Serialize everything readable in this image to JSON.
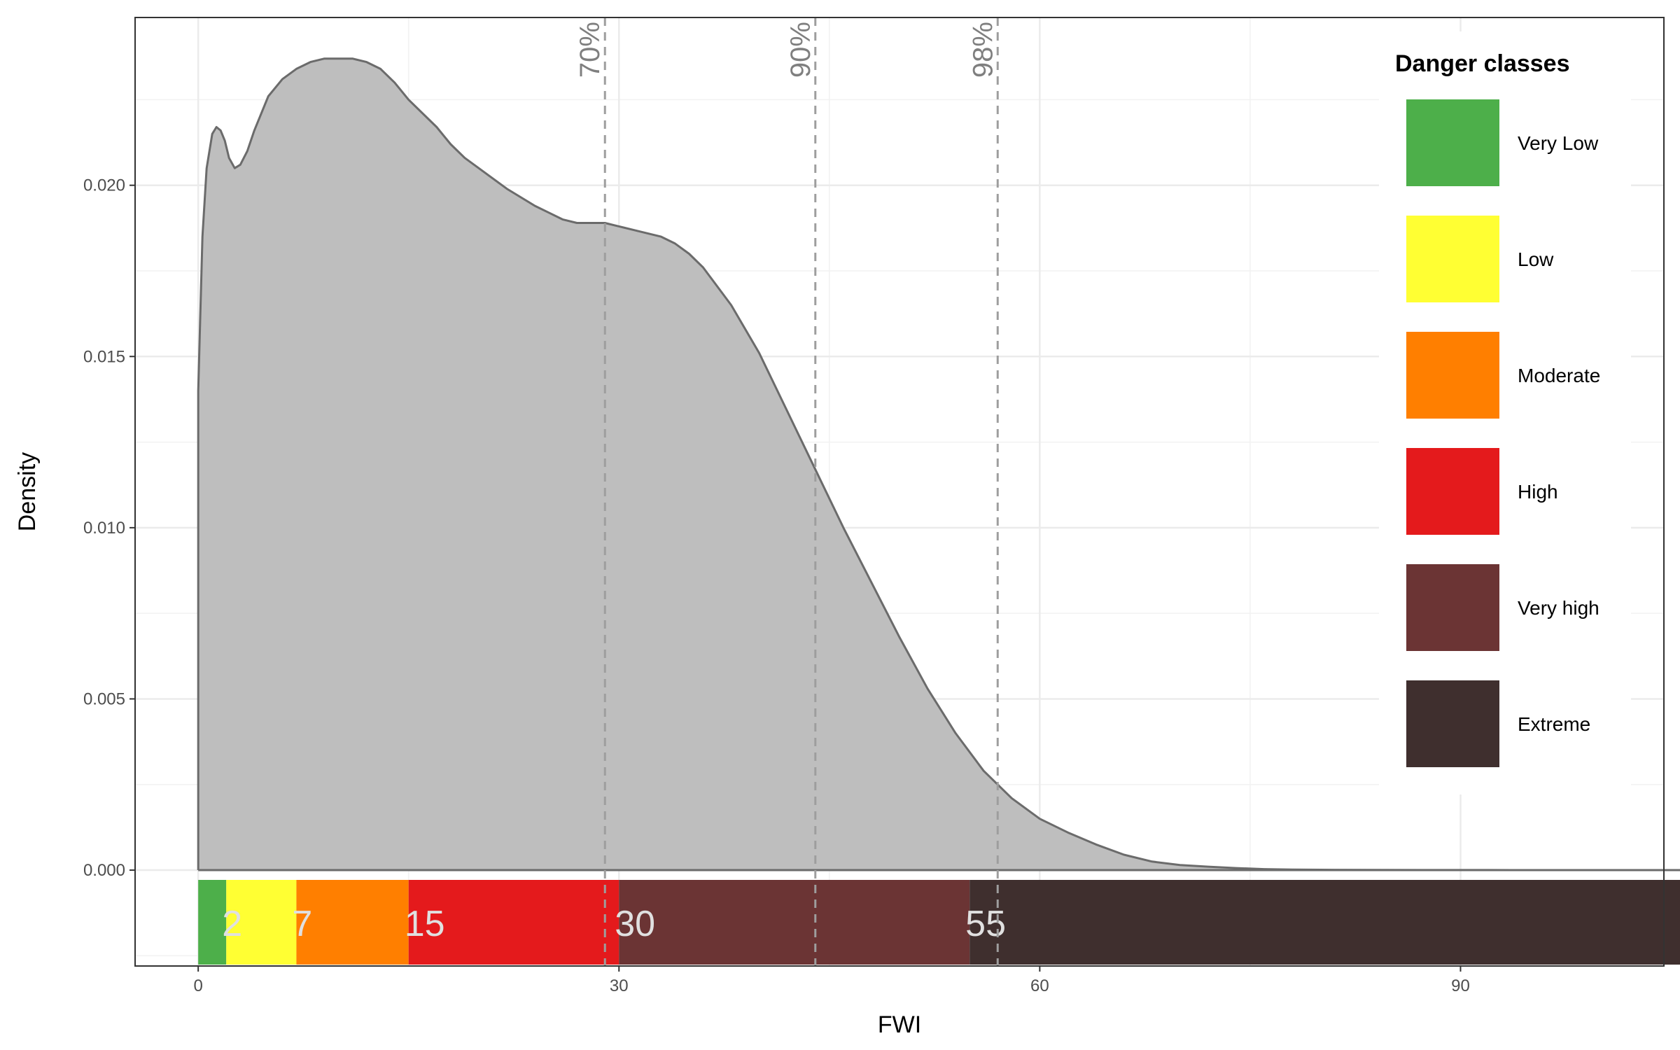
{
  "chart_data": {
    "type": "area",
    "xlabel": "FWI",
    "ylabel": "Density",
    "xlim": [
      -4.5,
      104.5
    ],
    "ylim": [
      -0.0028,
      0.0249
    ],
    "x_ticks": [
      0,
      30,
      60,
      90
    ],
    "y_ticks": [
      0.0,
      0.005,
      0.01,
      0.015,
      0.02
    ],
    "y_tick_labels": [
      "0.000",
      "0.005",
      "0.010",
      "0.015",
      "0.020"
    ],
    "grid": true,
    "colors": {
      "density_fill": "#bebebe",
      "density_line": "#6b6b6b",
      "percentile_line": "#9e9e9e"
    },
    "density": {
      "x": [
        0,
        0.3,
        0.6,
        1.0,
        1.3,
        1.6,
        1.9,
        2.2,
        2.6,
        3.0,
        3.5,
        4.0,
        5.0,
        6.0,
        7.0,
        8.0,
        9.0,
        10.0,
        11.0,
        12.0,
        13.0,
        14.0,
        15.0,
        17.0,
        18.0,
        19.0,
        20.0,
        22.0,
        24.0,
        25.0,
        26.0,
        27.0,
        28.0,
        29.0,
        30.0,
        31.0,
        32.0,
        33.0,
        34.0,
        35.0,
        36.0,
        38.0,
        40.0,
        42.0,
        44.0,
        46.0,
        48.0,
        50.0,
        52.0,
        54.0,
        56.0,
        58.0,
        60.0,
        62.0,
        64.0,
        66.0,
        68.0,
        70.0,
        72.0,
        74.0,
        76.0,
        78.0,
        80.0,
        84.0,
        88.0,
        92.0,
        96.0,
        100.0,
        104.0,
        109.8
      ],
      "y": [
        0.014,
        0.0185,
        0.0205,
        0.0215,
        0.0217,
        0.0216,
        0.0213,
        0.0208,
        0.0205,
        0.0206,
        0.021,
        0.0216,
        0.0226,
        0.0231,
        0.0234,
        0.0236,
        0.0237,
        0.0237,
        0.0237,
        0.0236,
        0.0234,
        0.023,
        0.0225,
        0.0217,
        0.0212,
        0.0208,
        0.0205,
        0.0199,
        0.0194,
        0.0192,
        0.019,
        0.0189,
        0.0189,
        0.0189,
        0.0188,
        0.0187,
        0.0186,
        0.0185,
        0.0183,
        0.018,
        0.0176,
        0.0165,
        0.0151,
        0.0134,
        0.0117,
        0.01,
        0.0084,
        0.0068,
        0.0053,
        0.004,
        0.0029,
        0.0021,
        0.0015,
        0.0011,
        0.00075,
        0.00045,
        0.00025,
        0.00015,
        0.0001,
        6e-05,
        3e-05,
        1.5e-05,
        1e-05,
        5e-06,
        3e-06,
        2e-06,
        1e-06,
        5e-07,
        2e-07,
        0.0
      ]
    },
    "percentiles": [
      {
        "label": "70%",
        "x": 29.0
      },
      {
        "label": "90%",
        "x": 44.0
      },
      {
        "label": "98%",
        "x": 57.0
      }
    ],
    "danger_bands": [
      {
        "name": "Very Low",
        "from": 0,
        "to": 2,
        "label": "",
        "color": "#4daf4a"
      },
      {
        "name": "Low",
        "from": 2,
        "to": 7,
        "label": "2",
        "color": "#ffff33"
      },
      {
        "name": "Moderate",
        "from": 7,
        "to": 15,
        "label": "7",
        "color": "#ff7f00"
      },
      {
        "name": "High",
        "from": 15,
        "to": 30,
        "label": "15",
        "color": "#e41a1c"
      },
      {
        "name": "Very high",
        "from": 30,
        "to": 55,
        "label": "30",
        "color": "#6b3434"
      },
      {
        "name": "Extreme",
        "from": 55,
        "to": 109.8,
        "label": "55",
        "color": "#3f2f2e"
      }
    ],
    "legend": {
      "title": "Danger classes",
      "position": "top-right",
      "entries": [
        "Very Low",
        "Low",
        "Moderate",
        "High",
        "Very high",
        "Extreme"
      ]
    }
  }
}
